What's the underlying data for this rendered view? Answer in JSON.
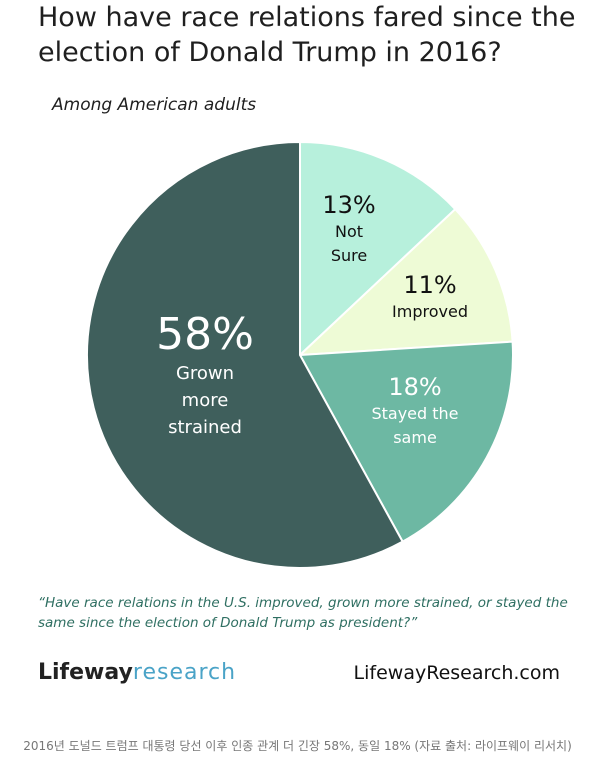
{
  "title": "How have race relations fared since the election of Donald Trump in 2016?",
  "subtitle": "Among American adults",
  "question": "“Have race relations in the U.S. improved, grown more strained, or stayed the same since the election of Donald Trump as president?”",
  "brand": {
    "part1": "Lifeway",
    "part2": "research",
    "site": "LifewayResearch.com"
  },
  "caption": "2016년 도널드 트럼프 대통령 당선 이후 인종 관계 더 긴장 58%, 동일 18% (자료 출처: 라이프웨이 리서치)",
  "chart_data": {
    "type": "pie",
    "slices": [
      {
        "label": "Not Sure",
        "value": 13,
        "display": "13%",
        "line1": "Not",
        "line2": "Sure",
        "color": "#b7f0dc"
      },
      {
        "label": "Improved",
        "value": 11,
        "display": "11%",
        "line1": "Improved",
        "line2": "",
        "color": "#eefbd6"
      },
      {
        "label": "Stayed the same",
        "value": 18,
        "display": "18%",
        "line1": "Stayed the",
        "line2": "same",
        "color": "#6db8a3"
      },
      {
        "label": "Grown more strained",
        "value": 58,
        "display": "58%",
        "line1": "Grown",
        "line2": "more",
        "line3": "strained",
        "color": "#3f5f5c"
      }
    ]
  }
}
